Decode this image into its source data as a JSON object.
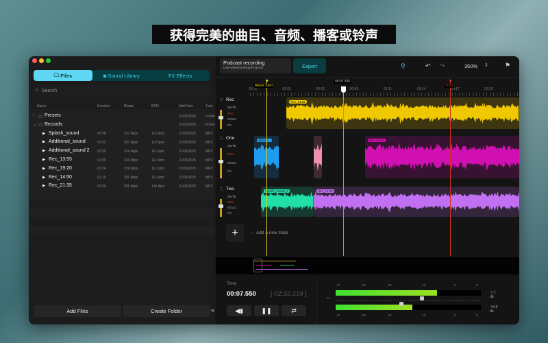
{
  "banner": "获得完美的曲目、音频、播客或铃声",
  "sidebar": {
    "tabs": [
      {
        "label": "Files",
        "icon": "folder-icon"
      },
      {
        "label": "Sound Library",
        "icon": "library-icon"
      },
      {
        "label": "Effects",
        "icon": "fx-icon",
        "prefix": "FX"
      }
    ],
    "search_placeholder": "Search",
    "columns": [
      "Name",
      "Duration",
      "Bitrate",
      "BPM",
      "Add Date",
      "Type"
    ],
    "rows": [
      {
        "name": "Presets",
        "kind": "folder",
        "expanded": false,
        "duration": "",
        "bitrate": "",
        "bpm": "",
        "date": "21/05/2025",
        "type": "Folder"
      },
      {
        "name": "Records",
        "kind": "folder",
        "expanded": true,
        "duration": "",
        "bitrate": "",
        "bpm": "",
        "date": "21/05/2025",
        "type": "Folder"
      },
      {
        "name": "Splash_sound",
        "kind": "file",
        "duration": "00:58",
        "bitrate": "257 kbps",
        "bpm": "112 bpm",
        "date": "21/05/2025",
        "type": "MP3"
      },
      {
        "name": "Additional_sound",
        "kind": "file",
        "duration": "01:52",
        "bitrate": "267 kbps",
        "bpm": "112 bpm",
        "date": "21/05/2025",
        "type": "MP3"
      },
      {
        "name": "Additional_sound 2",
        "kind": "file",
        "duration": "00:30",
        "bitrate": "239 kbps",
        "bpm": "111 bpm",
        "date": "21/05/2025",
        "type": "MP3"
      },
      {
        "name": "Rec_13:55",
        "kind": "file",
        "duration": "01:00",
        "bitrate": "244 kbps",
        "bpm": "111 bpm",
        "date": "21/05/2025",
        "type": "MP3"
      },
      {
        "name": "Rec_19:20",
        "kind": "file",
        "duration": "01:24",
        "bitrate": "239 kbps",
        "bpm": "111 bpm",
        "date": "21/05/2025",
        "type": "MP3"
      },
      {
        "name": "Rec_14:50",
        "kind": "file",
        "duration": "01:10",
        "bitrate": "281 kbps",
        "bpm": "111 bpm",
        "date": "21/05/2025",
        "type": "MP3"
      },
      {
        "name": "Rec_21:35",
        "kind": "file",
        "duration": "02:09",
        "bitrate": "256 kbps",
        "bpm": "126 bpm",
        "date": "21/05/2025",
        "type": "MP3"
      }
    ],
    "add_files": "Add Files",
    "create_folder": "Create Folder",
    "collapse": "«"
  },
  "project": {
    "title": "Podcast recording",
    "path": "Users/Me/Desktop/Projects",
    "export": "Export",
    "zoom": "350%"
  },
  "timeline": {
    "ticks": [
      "00:00",
      "00:03",
      "00:06",
      "00:09",
      "00:11",
      "00:14",
      "00:17",
      "00:20"
    ],
    "markers": [
      {
        "label": "Attack Start",
        "color": "#e8d020"
      },
      {
        "label": "Voice",
        "color": "#d03020"
      }
    ],
    "playhead": "00:07.550",
    "tracks": [
      {
        "name": "Rec",
        "buttons": [
          "MUTE",
          "REC",
          "SOLO",
          "FX"
        ],
        "clips": [
          {
            "label": "Rec_13:55",
            "color": "#f0c800"
          }
        ]
      },
      {
        "name": "One",
        "buttons": [
          "MUTE",
          "REC",
          "SOLO",
          "FX"
        ],
        "clips": [
          {
            "label": "Splash...",
            "color": "#1e9cf0"
          },
          {
            "label": "",
            "color": "#f090b0"
          },
          {
            "label": "Rec_19:20",
            "color": "#d010b0"
          }
        ]
      },
      {
        "name": "Two",
        "buttons": [
          "MUTE",
          "REC",
          "SOLO",
          "FX"
        ],
        "clips": [
          {
            "label": "Splash_sound_2",
            "color": "#20e0a8"
          },
          {
            "label": "Rec_14:50",
            "color": "#c070f0"
          }
        ]
      }
    ],
    "add_track": "Add a new track"
  },
  "transport": {
    "time_label": "Time",
    "time": "00:07.550",
    "total": "[ 02:32.219 ]",
    "buttons": [
      "rewind-icon",
      "pause-icon",
      "loop-icon"
    ]
  },
  "meters": {
    "scale": [
      "-37",
      "-30",
      "-20",
      "-10",
      "0",
      "5"
    ],
    "channels": [
      {
        "value": "-7.7 db",
        "level_db": -7.7
      },
      {
        "value": "-14.9 db",
        "level_db": -14.9
      }
    ]
  }
}
